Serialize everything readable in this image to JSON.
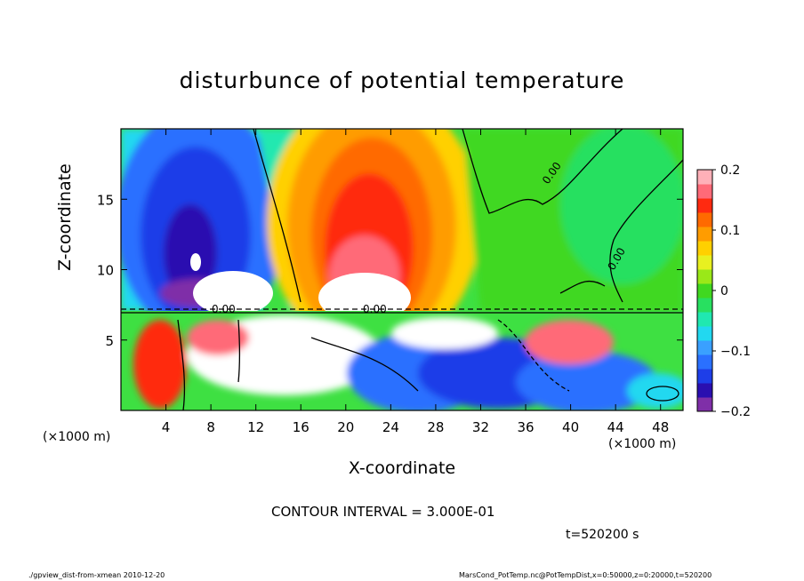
{
  "chart_data": {
    "type": "heatmap",
    "title": "disturbunce of potential temperature",
    "xlabel": "X-coordinate",
    "ylabel": "Z-coordinate",
    "x_unit": "(×1000 m)",
    "y_unit": "(×1000 m)",
    "xlim": [
      0,
      50
    ],
    "ylim": [
      0,
      20
    ],
    "x_ticks": [
      "4",
      "8",
      "12",
      "16",
      "20",
      "24",
      "28",
      "32",
      "36",
      "40",
      "44",
      "48"
    ],
    "y_ticks": [
      "5",
      "10",
      "15"
    ],
    "x_tick_values": [
      4,
      8,
      12,
      16,
      20,
      24,
      28,
      32,
      36,
      40,
      44,
      48
    ],
    "y_tick_values": [
      5,
      10,
      15
    ],
    "colorbar": {
      "min": -0.2,
      "max": 0.2,
      "ticks": [
        "0.2",
        "0.1",
        "0",
        "−0.1",
        "−0.2"
      ],
      "tick_values": [
        0.2,
        0.1,
        0,
        -0.1,
        -0.2
      ],
      "colors": [
        "#7f2fa8",
        "#2a0fb0",
        "#1e3ee8",
        "#2a70ff",
        "#3aa0ff",
        "#22d8f0",
        "#20e8b0",
        "#28e060",
        "#40d820",
        "#9ae818",
        "#e8f020",
        "#ffd000",
        "#ff9c00",
        "#ff6a00",
        "#ff2a10",
        "#ff6a78",
        "#ffb0b8"
      ]
    },
    "contour_label": "0.00",
    "annotations": {
      "contour_interval": "CONTOUR INTERVAL = 3.000E-01",
      "time": "t=520200 s",
      "footer_left": "./gpview_dist-from-xmean  2010-12-20",
      "footer_right": "MarsCond_PotTemp.nc@PotTempDist,x=0:50000,z=0:20000,t=520200"
    }
  }
}
